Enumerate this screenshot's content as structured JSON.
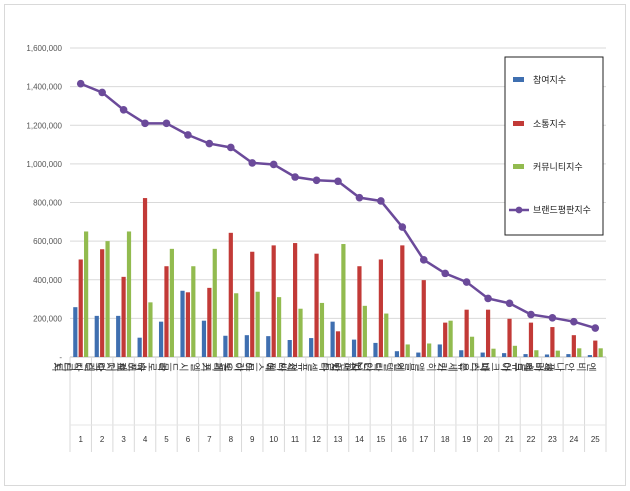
{
  "chart_data": {
    "type": "bar",
    "ylim": [
      0,
      1600000
    ],
    "y_ticks": [
      "-",
      "200,000",
      "400,000",
      "600,000",
      "800,000",
      "1,000,000",
      "1,200,000",
      "1,400,000",
      "1,600,000"
    ],
    "grid": true,
    "legend_position": "right",
    "categories": [
      "닥터지",
      "닥터자르트",
      "피지오겔",
      "바이오더마",
      "라로슈포제",
      "시드물",
      "키엘",
      "빌리프",
      "아이오페",
      "에스트라",
      "세타필",
      "셀퓨전씨",
      "시타",
      "차앤박",
      "닥터디퍼런트",
      "센텔리안24",
      "앨블엔",
      "가히",
      "유세린",
      "파티온",
      "아크네스",
      "셀큐어",
      "세바메드",
      "안나플러스",
      "엔비"
    ],
    "ranks": [
      "1",
      "2",
      "3",
      "4",
      "5",
      "6",
      "7",
      "8",
      "9",
      "10",
      "11",
      "12",
      "13",
      "14",
      "15",
      "16",
      "17",
      "18",
      "19",
      "20",
      "21",
      "22",
      "23",
      "24",
      "25"
    ],
    "series": [
      {
        "name": "참여지수",
        "type": "bar",
        "color": "#3f6fb0",
        "values": [
          258000,
          213000,
          213000,
          100000,
          183000,
          343000,
          188000,
          110000,
          113000,
          108000,
          88000,
          98000,
          183000,
          90000,
          73000,
          30000,
          23000,
          65000,
          35000,
          23000,
          20000,
          15000,
          13000,
          15000,
          10000
        ]
      },
      {
        "name": "소통지수",
        "type": "bar",
        "color": "#c23a37",
        "values": [
          505000,
          558000,
          415000,
          823000,
          470000,
          335000,
          358000,
          643000,
          545000,
          578000,
          590000,
          535000,
          133000,
          470000,
          505000,
          578000,
          398000,
          178000,
          245000,
          245000,
          198000,
          178000,
          155000,
          113000,
          85000
        ]
      },
      {
        "name": "커뮤니티지수",
        "type": "bar",
        "color": "#92bb4f",
        "values": [
          650000,
          600000,
          650000,
          283000,
          560000,
          470000,
          560000,
          330000,
          338000,
          310000,
          250000,
          280000,
          585000,
          265000,
          225000,
          65000,
          70000,
          188000,
          105000,
          43000,
          58000,
          35000,
          33000,
          45000,
          45000
        ]
      },
      {
        "name": "브랜드평판지수",
        "type": "line",
        "color": "#6b4a9a",
        "values": [
          1415000,
          1370000,
          1280000,
          1210000,
          1210000,
          1150000,
          1105000,
          1085000,
          1005000,
          997000,
          932000,
          915000,
          910000,
          825000,
          808000,
          673000,
          503000,
          433000,
          388000,
          303000,
          278000,
          220000,
          203000,
          183000,
          150000
        ]
      }
    ]
  }
}
